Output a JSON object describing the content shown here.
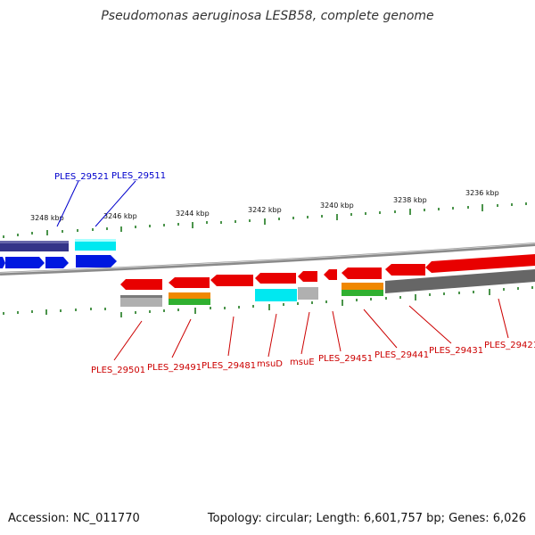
{
  "title": "Pseudomonas aeruginosa LESB58, complete genome",
  "footer": {
    "accession": "Accession: NC_011770",
    "summary": "Topology: circular; Length: 6,601,757 bp; Genes: 6,026"
  },
  "scale_labels": [
    "3248 kbp",
    "3246 kbp",
    "3244 kbp",
    "3242 kbp",
    "3240 kbp",
    "3238 kbp",
    "3236 kbp"
  ],
  "top_labels": [
    "PLES_29521",
    "PLES_29511"
  ],
  "bottom_labels": [
    "PLES_29501",
    "PLES_29491",
    "PLES_29481",
    "msuD",
    "msuE",
    "PLES_29451",
    "PLES_29441",
    "PLES_29431",
    "PLES_29421"
  ],
  "colors": {
    "forward_gene": "#0018e0",
    "reverse_gene": "#e80000",
    "dark_blue_track": "#333388",
    "cyan": "#00e8f0",
    "orange": "#f08800",
    "green": "#30b030",
    "gray": "#b0b0b0",
    "dark_gray": "#666666",
    "backbone": "#999999",
    "tick": "#1e7a1e"
  }
}
